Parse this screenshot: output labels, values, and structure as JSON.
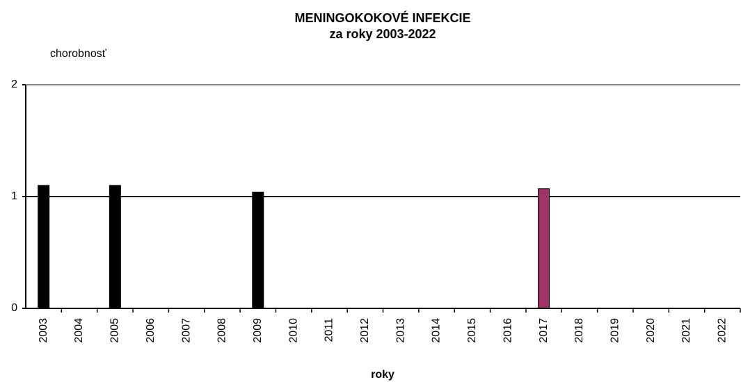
{
  "chart_data": {
    "type": "bar",
    "title": [
      "MENINGOKOKOVÉ INFEKCIE",
      "za roky 2003-2022"
    ],
    "y_label": "chorobnosť",
    "x_label": "roky",
    "categories": [
      "2003",
      "2004",
      "2005",
      "2006",
      "2007",
      "2008",
      "2009",
      "2010",
      "2011",
      "2012",
      "2013",
      "2014",
      "2015",
      "2016",
      "2017",
      "2018",
      "2019",
      "2020",
      "2021",
      "2022"
    ],
    "values": [
      1.1,
      0,
      1.1,
      0,
      0,
      0,
      1.04,
      0,
      0,
      0,
      0,
      0,
      0,
      0,
      1.07,
      0,
      0,
      0,
      0,
      0
    ],
    "colors": [
      "#000000",
      "#000000",
      "#000000",
      "#000000",
      "#000000",
      "#000000",
      "#000000",
      "#000000",
      "#000000",
      "#000000",
      "#000000",
      "#000000",
      "#000000",
      "#000000",
      "#9e3366",
      "#000000",
      "#000000",
      "#000000",
      "#000000",
      "#000000"
    ],
    "ylim": [
      0,
      2
    ],
    "yticks": [
      0,
      1,
      2
    ],
    "grid": true
  }
}
